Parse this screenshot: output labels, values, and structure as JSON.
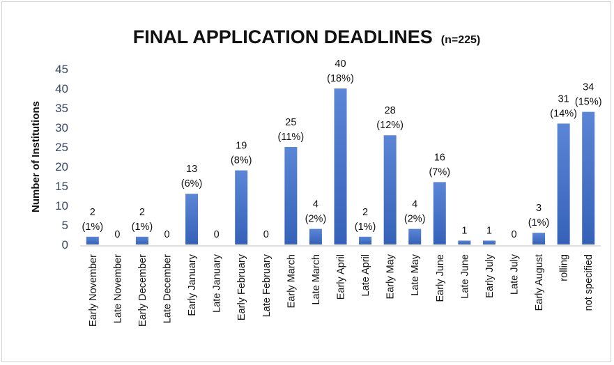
{
  "chart_data": {
    "type": "bar",
    "title": "FINAL APPLICATION DEADLINES",
    "subtitle": "(n=225)",
    "xlabel": "",
    "ylabel": "Number of Institutions",
    "ylim": [
      0,
      45
    ],
    "yticks": [
      0,
      5,
      10,
      15,
      20,
      25,
      30,
      35,
      40,
      45
    ],
    "grid": false,
    "legend": "none",
    "bar_color": "#4a72c8",
    "categories": [
      "Early November",
      "Late November",
      "Early December",
      "Late December",
      "Early January",
      "Late January",
      "Early February",
      "Late February",
      "Early March",
      "Late March",
      "Early April",
      "Late April",
      "Early May",
      "Late May",
      "Early June",
      "Late June",
      "Early July",
      "Late July",
      "Early August",
      "rolling",
      "not specified"
    ],
    "values": [
      2,
      0,
      2,
      0,
      13,
      0,
      19,
      0,
      25,
      4,
      40,
      2,
      28,
      4,
      16,
      1,
      1,
      0,
      3,
      31,
      34
    ],
    "percent_labels": [
      "(1%)",
      "",
      "(1%)",
      "",
      "(6%)",
      "",
      "(8%)",
      "",
      "(11%)",
      "(2%)",
      "(18%)",
      "(1%)",
      "(12%)",
      "(2%)",
      "(7%)",
      "",
      "",
      "",
      "(1%)",
      "(14%)",
      "(15%)"
    ]
  }
}
